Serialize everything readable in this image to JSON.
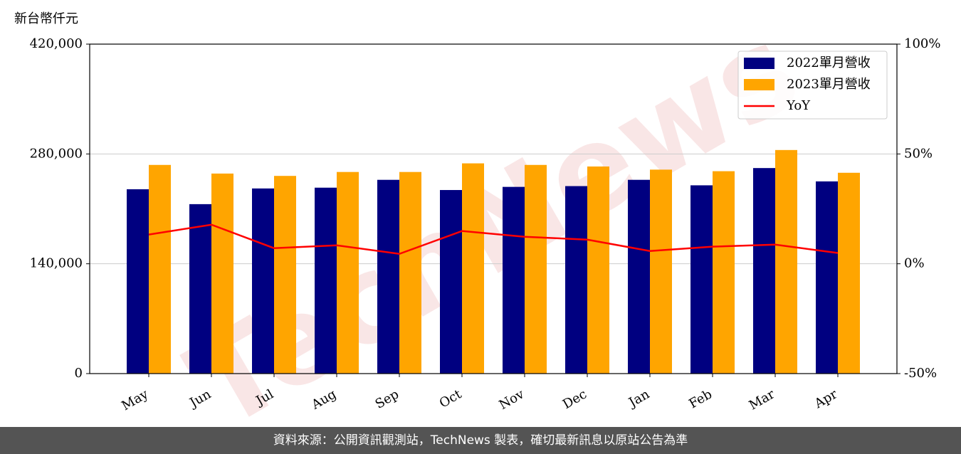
{
  "chart_data": {
    "type": "bar",
    "y_label": "新台幣仟元",
    "watermark": "TechNews",
    "categories": [
      "May",
      "Jun",
      "Jul",
      "Aug",
      "Sep",
      "Oct",
      "Nov",
      "Dec",
      "Jan",
      "Feb",
      "Mar",
      "Apr"
    ],
    "series": [
      {
        "name": "2022單月營收",
        "color": "#000080",
        "values": [
          235000,
          216000,
          236000,
          237000,
          247000,
          234000,
          238000,
          239000,
          247000,
          240000,
          262000,
          245000
        ]
      },
      {
        "name": "2023單月營收",
        "color": "#ffa500",
        "values": [
          266000,
          255000,
          252000,
          257000,
          257000,
          268000,
          266000,
          264000,
          260000,
          258000,
          285000,
          256000
        ]
      },
      {
        "name": "YoY",
        "color": "#ff0000",
        "type": "line",
        "axis": "y2",
        "values": [
          13.3,
          17.8,
          7.1,
          8.4,
          4.5,
          14.9,
          12.3,
          11.0,
          5.8,
          7.8,
          8.7,
          4.9
        ]
      }
    ],
    "ylim": [
      0,
      420000
    ],
    "yticks": [
      0,
      {
        "value": 140000,
        "label": "140,000"
      },
      {
        "value": 280000,
        "label": "280,000"
      },
      {
        "value": 420000,
        "label": "420,000"
      }
    ],
    "y2lim": [
      -50,
      100
    ],
    "y2ticks": [
      {
        "value": -50,
        "label": "-50%"
      },
      {
        "value": 0,
        "label": "0%"
      },
      {
        "value": 50,
        "label": "50%"
      },
      {
        "value": 100,
        "label": "100%"
      }
    ],
    "grid": true,
    "legend": "upper right"
  },
  "footer": "資料來源：公開資訊觀測站，TechNews 製表，確切最新訊息以原站公告為準"
}
